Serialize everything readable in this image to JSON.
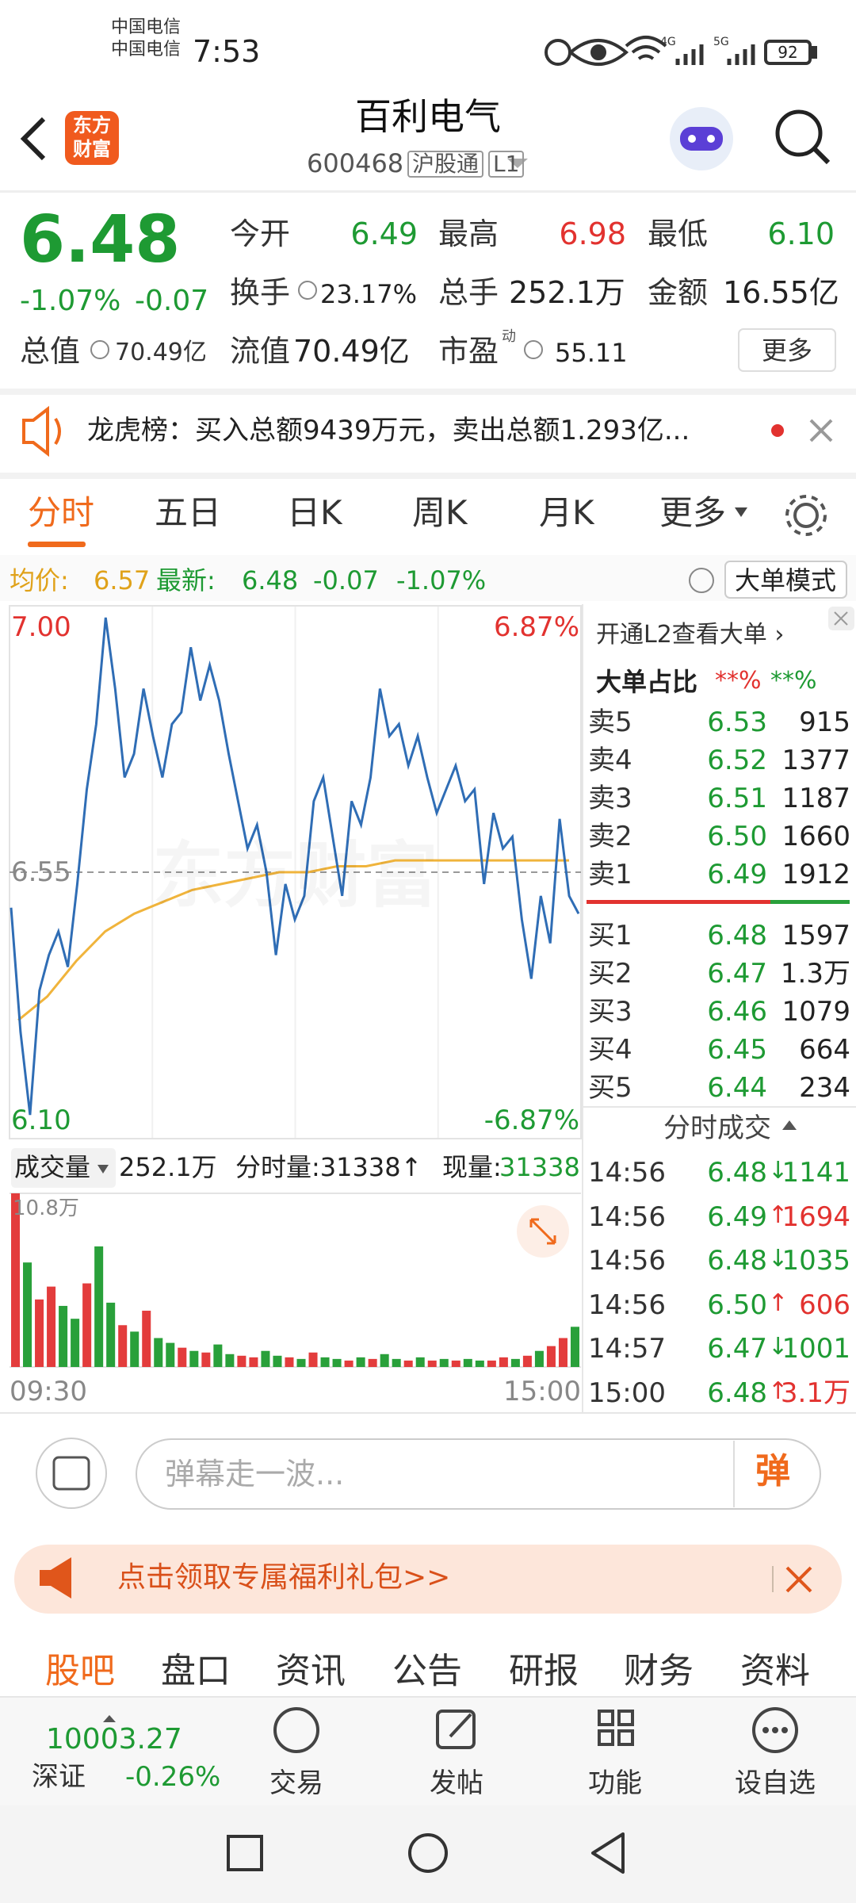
{
  "status_bar": {
    "carriers": [
      "中国电信",
      "中国电信"
    ],
    "time": "7:53",
    "network": [
      "4G",
      "5G"
    ],
    "battery": "92"
  },
  "header": {
    "logo": [
      "东方",
      "财富"
    ],
    "title": "百利电气",
    "code": "600468",
    "tags": [
      "沪股通",
      "L1"
    ]
  },
  "quote": {
    "price": "6.48",
    "change_pct": "-1.07%",
    "change": "-0.07",
    "total_value": {
      "label": "总值",
      "value": "70.49亿"
    },
    "stats": [
      [
        {
          "label": "今开",
          "value": "6.49",
          "color": "#1e9a33"
        },
        {
          "label": "最高",
          "value": "6.98",
          "color": "#e2322f"
        },
        {
          "label": "最低",
          "value": "6.10",
          "color": "#1e9a33"
        }
      ],
      [
        {
          "label": "换手",
          "value": "23.17%"
        },
        {
          "label": "总手",
          "value": "252.1万"
        },
        {
          "label": "金额",
          "value": "16.55亿"
        }
      ],
      [
        {
          "label": "流值",
          "value": "70.49亿"
        },
        {
          "label": "市盈",
          "sup": "动",
          "value": "55.11"
        }
      ]
    ],
    "more": "更多"
  },
  "news": {
    "text": "龙虎榜：买入总额9439万元，卖出总额1.293亿..."
  },
  "tabs": [
    "分时",
    "五日",
    "日K",
    "周K",
    "月K",
    "更多"
  ],
  "summary": {
    "avg_label": "均价:",
    "avg": "6.57",
    "latest_label": "最新:",
    "latest": "6.48",
    "change": "-0.07",
    "pct": "-1.07%",
    "mode_button": "大单模式"
  },
  "intraday": {
    "watermark": "东方财富",
    "ylim": [
      6.1,
      7.0
    ],
    "yticks": [
      {
        "value": 6.1,
        "label": "6.10"
      },
      {
        "value": 6.55,
        "label": "6.55"
      },
      {
        "value": 7.0,
        "label": "7.00"
      }
    ],
    "y2lim": [
      -6.87,
      6.87
    ],
    "y2ticks": [
      {
        "value": -6.87,
        "label": "-6.87%"
      },
      {
        "value": 6.87,
        "label": "6.87%"
      }
    ],
    "price": {
      "color": "#2f6db5",
      "values": [
        6.49,
        6.28,
        6.14,
        6.35,
        6.41,
        6.45,
        6.39,
        6.53,
        6.69,
        6.8,
        6.98,
        6.86,
        6.71,
        6.75,
        6.86,
        6.78,
        6.71,
        6.8,
        6.82,
        6.93,
        6.84,
        6.9,
        6.84,
        6.75,
        6.67,
        6.59,
        6.63,
        6.55,
        6.41,
        6.53,
        6.47,
        6.51,
        6.67,
        6.71,
        6.61,
        6.51,
        6.67,
        6.63,
        6.71,
        6.86,
        6.78,
        6.8,
        6.73,
        6.78,
        6.71,
        6.65,
        6.69,
        6.73,
        6.67,
        6.69,
        6.53,
        6.65,
        6.59,
        6.61,
        6.47,
        6.37,
        6.51,
        6.43,
        6.64,
        6.51,
        6.48
      ]
    },
    "average": {
      "color": "#f0b43c",
      "values": [
        6.3,
        6.34,
        6.4,
        6.45,
        6.48,
        6.5,
        6.52,
        6.53,
        6.54,
        6.55,
        6.55,
        6.56,
        6.56,
        6.57,
        6.57,
        6.57,
        6.57,
        6.57,
        6.57,
        6.57
      ]
    }
  },
  "volume": {
    "label": "成交量",
    "total": "252.1万",
    "minute_volume": "分时量:31338↑",
    "current_label": "现量:",
    "current": "31338",
    "ylim": [
      0,
      10.8
    ],
    "yticks": [
      {
        "value": 10.8,
        "label": "10.8万"
      }
    ],
    "values": [
      10.8,
      6.5,
      4.2,
      5.0,
      3.8,
      3.0,
      5.2,
      7.5,
      4.0,
      2.6,
      2.2,
      3.5,
      1.8,
      1.5,
      1.2,
      1.0,
      0.9,
      1.4,
      0.8,
      0.7,
      0.6,
      1.0,
      0.7,
      0.6,
      0.5,
      0.9,
      0.6,
      0.5,
      0.4,
      0.6,
      0.5,
      0.8,
      0.5,
      0.4,
      0.6,
      0.4,
      0.5,
      0.4,
      0.5,
      0.4,
      0.4,
      0.6,
      0.5,
      0.7,
      1.0,
      1.3,
      1.8,
      2.5
    ],
    "colors": [
      "#e33c3c",
      "#29a03a",
      "#e33c3c",
      "#e33c3c",
      "#29a03a",
      "#29a03a",
      "#e33c3c",
      "#29a03a",
      "#29a03a",
      "#e33c3c",
      "#29a03a",
      "#e33c3c",
      "#29a03a",
      "#29a03a",
      "#e33c3c",
      "#29a03a",
      "#e33c3c",
      "#29a03a",
      "#29a03a",
      "#e33c3c",
      "#e33c3c",
      "#29a03a",
      "#29a03a",
      "#e33c3c",
      "#29a03a",
      "#e33c3c",
      "#29a03a",
      "#29a03a",
      "#e33c3c",
      "#29a03a",
      "#e33c3c",
      "#29a03a",
      "#29a03a",
      "#e33c3c",
      "#29a03a",
      "#e33c3c",
      "#29a03a",
      "#e33c3c",
      "#29a03a",
      "#29a03a",
      "#e33c3c",
      "#e33c3c",
      "#29a03a",
      "#e33c3c",
      "#29a03a",
      "#e33c3c",
      "#e33c3c",
      "#29a03a"
    ],
    "x_labels": [
      "09:30",
      "15:00"
    ]
  },
  "side_panel": {
    "l2_link": "开通L2查看大单 ›",
    "big_order": {
      "label": "大单占比",
      "sell": "**%",
      "buy": "**%"
    },
    "asks": [
      {
        "label": "卖5",
        "price": "6.53",
        "volume": "915"
      },
      {
        "label": "卖4",
        "price": "6.52",
        "volume": "1377"
      },
      {
        "label": "卖3",
        "price": "6.51",
        "volume": "1187"
      },
      {
        "label": "卖2",
        "price": "6.50",
        "volume": "1660"
      },
      {
        "label": "卖1",
        "price": "6.49",
        "volume": "1912"
      }
    ],
    "bids": [
      {
        "label": "买1",
        "price": "6.48",
        "volume": "1597"
      },
      {
        "label": "买2",
        "price": "6.47",
        "volume": "1.3万"
      },
      {
        "label": "买3",
        "price": "6.46",
        "volume": "1079"
      },
      {
        "label": "买4",
        "price": "6.45",
        "volume": "664"
      },
      {
        "label": "买5",
        "price": "6.44",
        "volume": "234"
      }
    ],
    "trades_title": "分时成交",
    "trades": [
      {
        "time": "14:56",
        "price": "6.48",
        "dir": "↓",
        "volume": "1141"
      },
      {
        "time": "14:56",
        "price": "6.49",
        "dir": "↑",
        "volume": "1694"
      },
      {
        "time": "14:56",
        "price": "6.48",
        "dir": "↓",
        "volume": "1035"
      },
      {
        "time": "14:56",
        "price": "6.50",
        "dir": "↑",
        "volume": "606"
      },
      {
        "time": "14:57",
        "price": "6.47",
        "dir": "↓",
        "volume": "1001"
      },
      {
        "time": "15:00",
        "price": "6.48",
        "dir": "↑",
        "volume": "3.1万"
      }
    ]
  },
  "comment_bar": {
    "placeholder": "弹幕走一波...",
    "button": "弹"
  },
  "banner": {
    "text": "点击领取专属福利礼包>>"
  },
  "bottom_tabs": [
    "股吧",
    "盘口",
    "资讯",
    "公告",
    "研报",
    "财务",
    "资料"
  ],
  "bottom_nav": {
    "index_value": "10003.27",
    "index_name": "深证",
    "index_change": "-0.26%",
    "items": [
      "交易",
      "发帖",
      "功能",
      "设自选"
    ]
  }
}
